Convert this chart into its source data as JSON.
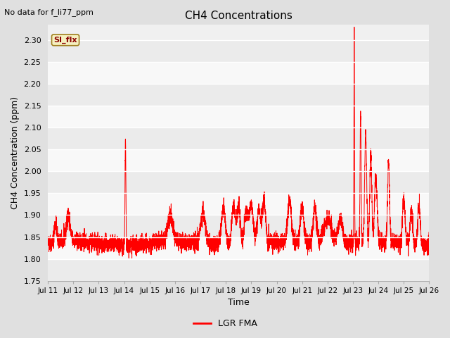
{
  "title": "CH4 Concentrations",
  "xlabel": "Time",
  "ylabel": "CH4 Concentration (ppm)",
  "top_left_text": "No data for f_li77_ppm",
  "annotation_label": "SI_flx",
  "legend_label": "LGR FMA",
  "line_color": "#ff0000",
  "fig_facecolor": "#e0e0e0",
  "plot_facecolor": "#f0f0f0",
  "ylim": [
    1.75,
    2.335
  ],
  "yticks": [
    1.75,
    1.8,
    1.85,
    1.9,
    1.95,
    2.0,
    2.05,
    2.1,
    2.15,
    2.2,
    2.25,
    2.3
  ],
  "xtick_labels": [
    "Jul 11",
    "Jul 12",
    "Jul 13",
    "Jul 14",
    "Jul 15",
    "Jul 16",
    "Jul 17",
    "Jul 18",
    "Jul 19",
    "Jul 20",
    "Jul 21",
    "Jul 22",
    "Jul 23",
    "Jul 24",
    "Jul 25",
    "Jul 26"
  ],
  "n_points": 5000,
  "seed": 42,
  "band_colors": [
    "#ebebeb",
    "#f8f8f8"
  ]
}
